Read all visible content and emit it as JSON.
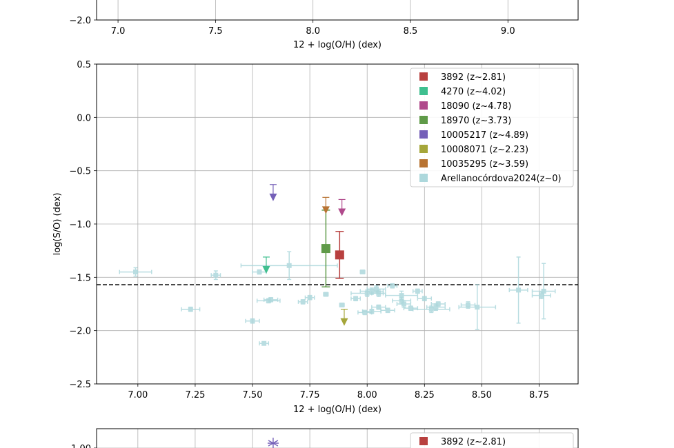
{
  "chart_data": [
    {
      "type": "scatter",
      "panel": "top (partially visible)",
      "xlabel": "12 + log(O/H) (dex)",
      "ylabel": "",
      "x_ticks": [
        "7.0",
        "7.5",
        "8.0",
        "8.5",
        "9.0"
      ],
      "x_tick_values": [
        7.0,
        7.5,
        8.0,
        8.5,
        9.0
      ],
      "y_ticks": [
        "−2.0"
      ],
      "y_tick_values": [
        -2.0
      ],
      "xlim": [
        6.89,
        9.36
      ],
      "grid": true
    },
    {
      "type": "scatter",
      "panel": "middle",
      "xlabel": "12 + log(O/H) (dex)",
      "ylabel": "log(S/O) (dex)",
      "xlim": [
        6.82,
        8.92
      ],
      "ylim": [
        -2.5,
        0.5
      ],
      "x_ticks": [
        "7.00",
        "7.25",
        "7.50",
        "7.75",
        "8.00",
        "8.25",
        "8.50",
        "8.75"
      ],
      "x_tick_values": [
        7.0,
        7.25,
        7.5,
        7.75,
        8.0,
        8.25,
        8.5,
        8.75
      ],
      "y_ticks": [
        "0.5",
        "0.0",
        "−0.5",
        "−1.0",
        "−1.5",
        "−2.0",
        "−2.5"
      ],
      "y_tick_values": [
        0.5,
        0.0,
        -0.5,
        -1.0,
        -1.5,
        -2.0,
        -2.5
      ],
      "grid": true,
      "reference_line": {
        "y": -1.57,
        "style": "dashed",
        "color": "#222222"
      },
      "legend_position": "upper right",
      "series": [
        {
          "name": "3892 (z~2.81)",
          "color": "#B8403F",
          "marker": "square",
          "points": [
            {
              "x": 7.88,
              "y": -1.29,
              "y_err_up": 0.22,
              "y_err_down": 0.22
            }
          ]
        },
        {
          "name": "4270 (z~4.02)",
          "color": "#3FBF8F",
          "marker": "triangle-down",
          "upper_limit": true,
          "points": [
            {
              "x": 7.56,
              "y": -1.43,
              "limit_from": -1.31
            }
          ]
        },
        {
          "name": "18090 (z~4.78)",
          "color": "#B04A8C",
          "marker": "triangle-down",
          "upper_limit": true,
          "points": [
            {
              "x": 7.89,
              "y": -0.89,
              "limit_from": -0.77
            }
          ]
        },
        {
          "name": "18970 (z~3.73)",
          "color": "#5F9A48",
          "marker": "square",
          "points": [
            {
              "x": 7.82,
              "y": -1.23,
              "y_err_up": 0.36,
              "y_err_down": 0.36
            }
          ]
        },
        {
          "name": "10005217 (z~4.89)",
          "color": "#7560B8",
          "marker": "triangle-down",
          "upper_limit": true,
          "points": [
            {
              "x": 7.59,
              "y": -0.75,
              "limit_from": -0.63
            }
          ]
        },
        {
          "name": "10008071 (z~2.23)",
          "color": "#A5A63A",
          "marker": "triangle-down",
          "upper_limit": true,
          "points": [
            {
              "x": 7.9,
              "y": -1.92,
              "limit_from": -1.8
            }
          ]
        },
        {
          "name": "10035295 (z~3.59)",
          "color": "#B87332",
          "marker": "triangle-down",
          "upper_limit": true,
          "points": [
            {
              "x": 7.82,
              "y": -0.87,
              "limit_from": -0.75
            }
          ]
        },
        {
          "name": "Arellanocórdova2024(z~0)",
          "color": "#ADD8DC",
          "marker": "square",
          "points": [
            {
              "x": 6.99,
              "y": -1.45,
              "xerr": 0.07,
              "yerr": 0.04
            },
            {
              "x": 7.23,
              "y": -1.8,
              "xerr": 0.04,
              "yerr": 0.02
            },
            {
              "x": 7.34,
              "y": -1.48,
              "xerr": 0.02,
              "yerr": 0.04
            },
            {
              "x": 7.5,
              "y": -1.91,
              "xerr": 0.03,
              "yerr": 0.02
            },
            {
              "x": 7.53,
              "y": -1.45,
              "xerr": 0.03,
              "yerr": 0.02
            },
            {
              "x": 7.55,
              "y": -2.12,
              "xerr": 0.02,
              "yerr": 0.01
            },
            {
              "x": 7.57,
              "y": -1.72,
              "xerr": 0.05,
              "yerr": 0.02
            },
            {
              "x": 7.58,
              "y": -1.71,
              "xerr": 0.03,
              "yerr": 0.02
            },
            {
              "x": 7.66,
              "y": -1.39,
              "xerr": 0.21,
              "yerr": 0.13
            },
            {
              "x": 7.72,
              "y": -1.73,
              "xerr": 0.02,
              "yerr": 0.02
            },
            {
              "x": 7.75,
              "y": -1.69,
              "xerr": 0.02,
              "yerr": 0.02
            },
            {
              "x": 7.82,
              "y": -1.66,
              "xerr": 0.01,
              "yerr": 0.01
            },
            {
              "x": 7.89,
              "y": -1.76,
              "xerr": 0.01,
              "yerr": 0.01
            },
            {
              "x": 7.98,
              "y": -1.45,
              "xerr": 0.01,
              "yerr": 0.01
            },
            {
              "x": 7.95,
              "y": -1.7,
              "xerr": 0.02,
              "yerr": 0.02
            },
            {
              "x": 7.99,
              "y": -1.83,
              "xerr": 0.03,
              "yerr": 0.02
            },
            {
              "x": 8.0,
              "y": -1.65,
              "xerr": 0.07,
              "yerr": 0.03
            },
            {
              "x": 8.02,
              "y": -1.63,
              "xerr": 0.05,
              "yerr": 0.03
            },
            {
              "x": 8.02,
              "y": -1.82,
              "xerr": 0.04,
              "yerr": 0.02
            },
            {
              "x": 8.04,
              "y": -1.61,
              "xerr": 0.04,
              "yerr": 0.03
            },
            {
              "x": 8.05,
              "y": -1.65,
              "xerr": 0.03,
              "yerr": 0.03
            },
            {
              "x": 8.05,
              "y": -1.78,
              "xerr": 0.03,
              "yerr": 0.02
            },
            {
              "x": 8.09,
              "y": -1.81,
              "xerr": 0.03,
              "yerr": 0.02
            },
            {
              "x": 8.11,
              "y": -1.58,
              "xerr": 0.02,
              "yerr": 0.02
            },
            {
              "x": 8.15,
              "y": -1.67,
              "xerr": 0.07,
              "yerr": 0.04
            },
            {
              "x": 8.15,
              "y": -1.72,
              "xerr": 0.04,
              "yerr": 0.03
            },
            {
              "x": 8.16,
              "y": -1.75,
              "xerr": 0.03,
              "yerr": 0.03
            },
            {
              "x": 8.19,
              "y": -1.79,
              "xerr": 0.03,
              "yerr": 0.02
            },
            {
              "x": 8.22,
              "y": -1.63,
              "xerr": 0.02,
              "yerr": 0.02
            },
            {
              "x": 8.25,
              "y": -1.7,
              "xerr": 0.03,
              "yerr": 0.02
            },
            {
              "x": 8.28,
              "y": -1.8,
              "xerr": 0.08,
              "yerr": 0.03
            },
            {
              "x": 8.3,
              "y": -1.78,
              "xerr": 0.04,
              "yerr": 0.03
            },
            {
              "x": 8.31,
              "y": -1.75,
              "xerr": 0.03,
              "yerr": 0.02
            },
            {
              "x": 8.44,
              "y": -1.76,
              "xerr": 0.03,
              "yerr": 0.03
            },
            {
              "x": 8.48,
              "y": -1.78,
              "xerr": 0.08,
              "yerr": 0.21
            },
            {
              "x": 8.66,
              "y": -1.62,
              "xerr": 0.04,
              "yerr": 0.31
            },
            {
              "x": 8.76,
              "y": -1.67,
              "xerr": 0.04,
              "yerr": 0.03
            },
            {
              "x": 8.77,
              "y": -1.63,
              "xerr": 0.05,
              "yerr": 0.26
            }
          ]
        }
      ]
    },
    {
      "type": "scatter",
      "panel": "bottom (partially visible)",
      "xlim": [
        6.82,
        8.92
      ],
      "y_ticks": [
        "1.00"
      ],
      "y_tick_values": [
        1.0
      ],
      "x_grid_values": [
        7.0,
        7.25,
        7.5,
        7.75,
        8.0,
        8.25,
        8.5,
        8.75
      ],
      "grid": true,
      "series": [
        {
          "name": "3892 (z~2.81)",
          "color": "#B8403F",
          "marker": "square",
          "points": []
        },
        {
          "name": "10005217 (z~4.89)",
          "color": "#7560B8",
          "marker": "asterisk",
          "legend_hidden": true,
          "points": [
            {
              "x": 7.59,
              "y": 1.0
            }
          ]
        }
      ]
    }
  ]
}
